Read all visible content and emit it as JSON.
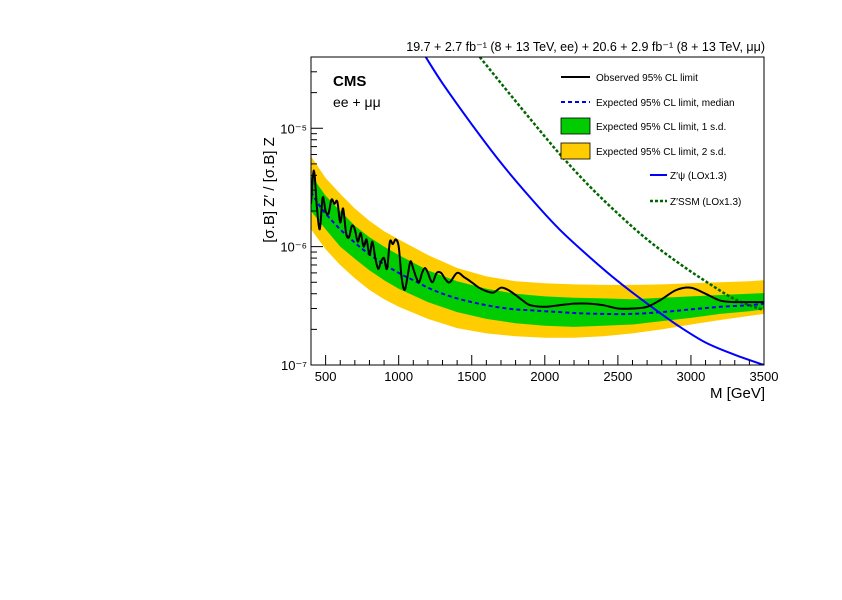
{
  "header": {
    "lumi_text": "19.7 + 2.7 fb⁻¹ (8 + 13 TeV, ee) + 20.6 + 2.9 fb⁻¹ (8 + 13 TeV, μμ)"
  },
  "labels": {
    "experiment": "CMS",
    "channel": "ee + μμ"
  },
  "chart_data": {
    "type": "line",
    "xlabel": "M [GeV]",
    "ylabel": "[σ.B] Z′ / [σ.B] Z",
    "xlim": [
      400,
      3500
    ],
    "ylim": [
      1e-07,
      4e-05
    ],
    "yscale": "log",
    "x_ticks": [
      500,
      1000,
      1500,
      2000,
      2500,
      3000,
      3500
    ],
    "x_tick_labels": [
      "500",
      "1000",
      "1500",
      "2000",
      "2500",
      "3000",
      "3500"
    ],
    "y_ticks": [
      1e-07,
      1e-06,
      1e-05
    ],
    "y_tick_labels": [
      "10⁻⁷",
      "10⁻⁶",
      "10⁻⁵"
    ],
    "legend_position": "top-right",
    "legend": [
      {
        "label": "Observed 95% CL limit",
        "style": "line",
        "color": "#000000"
      },
      {
        "label": "Expected 95% CL limit, median",
        "style": "dashed",
        "color": "#0000ee"
      },
      {
        "label": "Expected 95% CL limit, 1 s.d.",
        "style": "box",
        "color": "#00cc00"
      },
      {
        "label": "Expected 95% CL limit, 2 s.d.",
        "style": "box",
        "color": "#ffcc00"
      },
      {
        "label": "Z′ψ (LOx1.3)",
        "style": "line",
        "color": "#0000ff"
      },
      {
        "label": "Z′SSM (LOx1.3)",
        "style": "dotted",
        "color": "#006600"
      }
    ],
    "series": [
      {
        "name": "Observed 95% CL limit",
        "x": [
          400,
          420,
          440,
          460,
          480,
          500,
          520,
          540,
          560,
          580,
          600,
          620,
          640,
          660,
          680,
          700,
          720,
          740,
          760,
          780,
          800,
          820,
          840,
          860,
          880,
          900,
          920,
          940,
          960,
          980,
          1000,
          1020,
          1040,
          1060,
          1080,
          1100,
          1120,
          1140,
          1160,
          1180,
          1200,
          1230,
          1260,
          1290,
          1320,
          1350,
          1400,
          1450,
          1500,
          1550,
          1600,
          1650,
          1700,
          1750,
          1800,
          1850,
          1900,
          2000,
          2100,
          2200,
          2300,
          2400,
          2500,
          2600,
          2700,
          2800,
          2900,
          3000,
          3100,
          3200,
          3300,
          3400,
          3500
        ],
        "y": [
          2.3e-06,
          4.4e-06,
          2.2e-06,
          1.4e-06,
          2.6e-06,
          2e-06,
          1.9e-06,
          2.5e-06,
          2.3e-06,
          2.4e-06,
          1.6e-06,
          2.1e-06,
          1.3e-06,
          1.2e-06,
          1.5e-06,
          1.4e-06,
          1.1e-06,
          1.3e-06,
          1e-06,
          1.15e-06,
          8.5e-07,
          1.1e-06,
          8e-07,
          6.5e-07,
          7.5e-07,
          8e-07,
          6.5e-07,
          1.1e-06,
          1.05e-06,
          1.15e-06,
          1e-06,
          5.5e-07,
          4.3e-07,
          5.5e-07,
          7.5e-07,
          6.5e-07,
          5.5e-07,
          5e-07,
          6e-07,
          6.6e-07,
          6e-07,
          5e-07,
          6e-07,
          6e-07,
          5.3e-07,
          5e-07,
          6e-07,
          5.5e-07,
          5e-07,
          4.5e-07,
          4.2e-07,
          4.1e-07,
          4.5e-07,
          4.3e-07,
          3.9e-07,
          3.5e-07,
          3.2e-07,
          3.1e-07,
          3.2e-07,
          3.3e-07,
          3.3e-07,
          3.2e-07,
          3e-07,
          3e-07,
          3.1e-07,
          3.6e-07,
          4.3e-07,
          4.5e-07,
          4e-07,
          3.5e-07,
          3.4e-07,
          3.4e-07,
          3.4e-07
        ]
      },
      {
        "name": "Expected 95% CL limit, median",
        "x": [
          400,
          450,
          500,
          600,
          700,
          800,
          900,
          1000,
          1100,
          1200,
          1300,
          1400,
          1500,
          1600,
          1700,
          1800,
          1900,
          2000,
          2200,
          2400,
          2600,
          2800,
          3000,
          3200,
          3400,
          3500
        ],
        "y": [
          2.9e-06,
          2.3e-06,
          1.9e-06,
          1.4e-06,
          1.08e-06,
          8.6e-07,
          7.1e-07,
          6e-07,
          5.2e-07,
          4.5e-07,
          4e-07,
          3.65e-07,
          3.4e-07,
          3.2e-07,
          3.05e-07,
          2.95e-07,
          2.9e-07,
          2.85e-07,
          2.75e-07,
          2.7e-07,
          2.7e-07,
          2.8e-07,
          2.95e-07,
          3.1e-07,
          3.2e-07,
          3.3e-07
        ]
      },
      {
        "name": "Expected 95% CL limit, 1 s.d. (upper)",
        "x": [
          400,
          500,
          600,
          700,
          800,
          900,
          1000,
          1200,
          1400,
          1600,
          1800,
          2000,
          2200,
          2400,
          2600,
          2800,
          3000,
          3200,
          3400,
          3500
        ],
        "y": [
          4e-06,
          2.7e-06,
          2e-06,
          1.5e-06,
          1.2e-06,
          1e-06,
          8.5e-07,
          6.3e-07,
          5.1e-07,
          4.4e-07,
          4e-07,
          3.8e-07,
          3.7e-07,
          3.65e-07,
          3.6e-07,
          3.7e-07,
          3.8e-07,
          3.9e-07,
          4e-07,
          4.05e-07
        ]
      },
      {
        "name": "Expected 95% CL limit, 1 s.d. (lower)",
        "x": [
          400,
          500,
          600,
          700,
          800,
          900,
          1000,
          1200,
          1400,
          1600,
          1800,
          2000,
          2200,
          2400,
          2600,
          2800,
          3000,
          3200,
          3400,
          3500
        ],
        "y": [
          2e-06,
          1.4e-06,
          1e-06,
          7.9e-07,
          6.3e-07,
          5.2e-07,
          4.4e-07,
          3.4e-07,
          2.8e-07,
          2.45e-07,
          2.25e-07,
          2.15e-07,
          2.1e-07,
          2.15e-07,
          2.2e-07,
          2.35e-07,
          2.5e-07,
          2.7e-07,
          2.85e-07,
          2.95e-07
        ]
      },
      {
        "name": "Expected 95% CL limit, 2 s.d. (upper)",
        "x": [
          400,
          500,
          600,
          700,
          800,
          900,
          1000,
          1200,
          1400,
          1600,
          1800,
          2000,
          2200,
          2400,
          2600,
          2800,
          3000,
          3200,
          3400,
          3500
        ],
        "y": [
          5.8e-06,
          3.8e-06,
          2.8e-06,
          2.1e-06,
          1.65e-06,
          1.35e-06,
          1.15e-06,
          8.5e-07,
          6.6e-07,
          5.6e-07,
          5.1e-07,
          4.9e-07,
          4.8e-07,
          4.75e-07,
          4.75e-07,
          4.8e-07,
          4.9e-07,
          5e-07,
          5.1e-07,
          5.2e-07
        ]
      },
      {
        "name": "Expected 95% CL limit, 2 s.d. (lower)",
        "x": [
          400,
          500,
          600,
          700,
          800,
          900,
          1000,
          1200,
          1400,
          1600,
          1800,
          2000,
          2200,
          2400,
          2600,
          2800,
          3000,
          3200,
          3400,
          3500
        ],
        "y": [
          1.4e-06,
          9.5e-07,
          7e-07,
          5.4e-07,
          4.3e-07,
          3.6e-07,
          3.1e-07,
          2.45e-07,
          2.05e-07,
          1.85e-07,
          1.75e-07,
          1.7e-07,
          1.7e-07,
          1.75e-07,
          1.85e-07,
          2e-07,
          2.2e-07,
          2.4e-07,
          2.6e-07,
          2.7e-07
        ]
      },
      {
        "name": "Z′ψ (LOx1.3)",
        "x": [
          1185,
          1300,
          1500,
          1700,
          1900,
          2100,
          2300,
          2500,
          2700,
          2900,
          3100,
          3300,
          3500
        ],
        "y": [
          4e-05,
          2.4e-05,
          1.08e-05,
          5.1e-06,
          2.6e-06,
          1.4e-06,
          8.3e-07,
          5.1e-07,
          3.3e-07,
          2.2e-07,
          1.55e-07,
          1.22e-07,
          1e-07
        ]
      },
      {
        "name": "Z′SSM (LOx1.3)",
        "x": [
          1555,
          1700,
          1900,
          2100,
          2300,
          2500,
          2700,
          2900,
          3100,
          3300,
          3500
        ],
        "y": [
          4e-05,
          2.4e-05,
          1.2e-05,
          6.1e-06,
          3.3e-06,
          1.9e-06,
          1.15e-06,
          7.5e-07,
          5.1e-07,
          3.6e-07,
          2.9e-07
        ]
      }
    ]
  }
}
